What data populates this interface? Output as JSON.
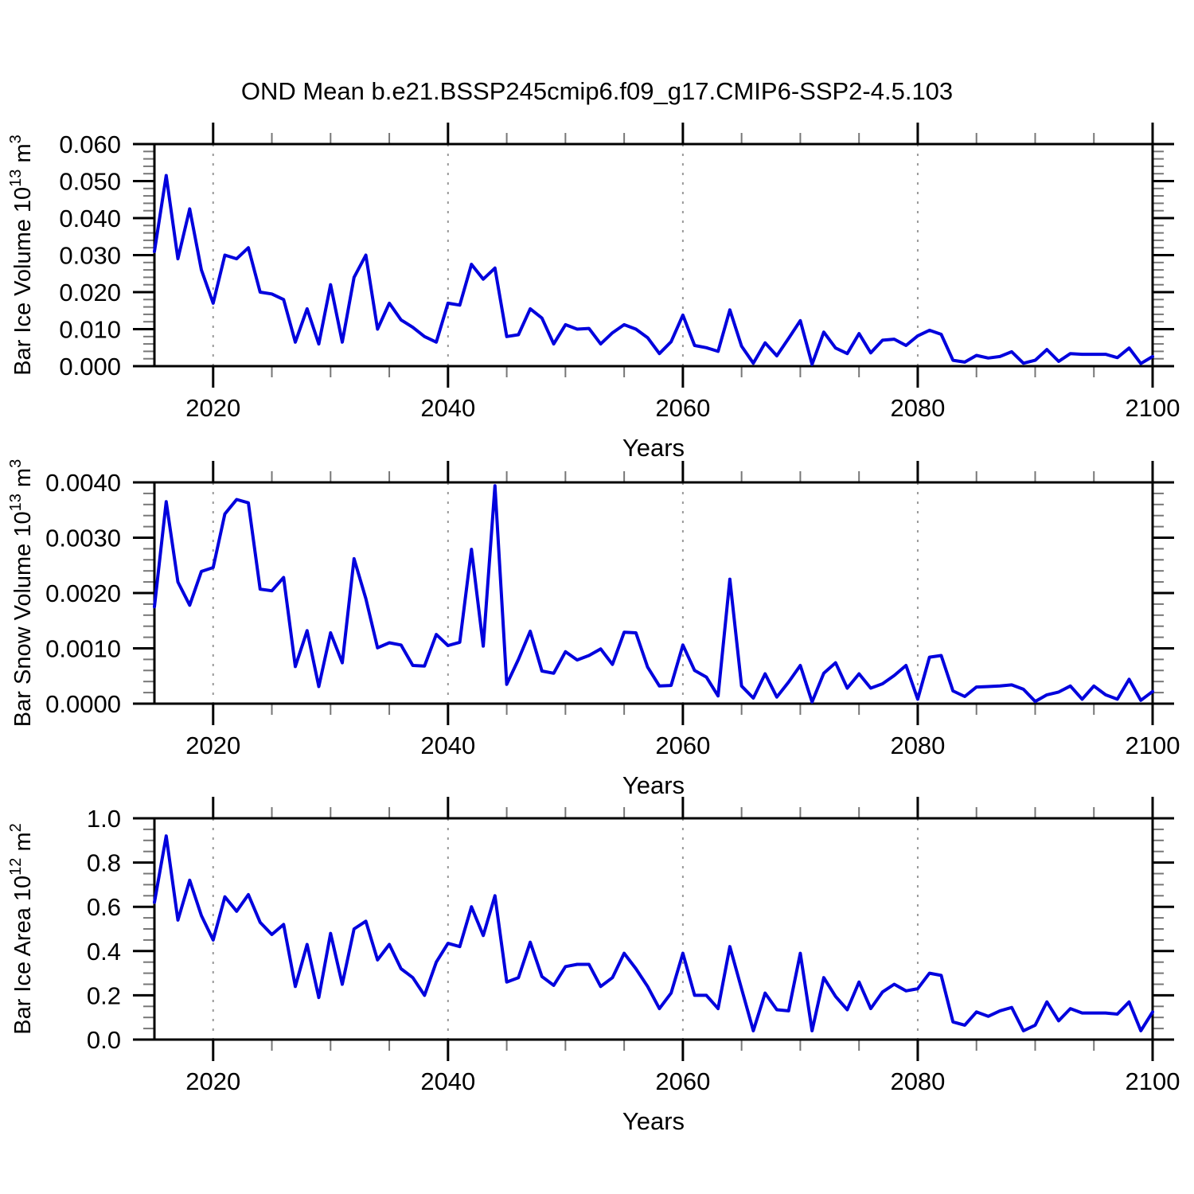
{
  "title": "OND Mean b.e21.BSSP245cmip6.f09_g17.CMIP6-SSP2-4.5.103",
  "xlabel": "Years",
  "line_color": "#0000dd",
  "grid_color": "#999999",
  "axis_color": "#000000",
  "minor_tick_color": "#777777",
  "x_years_start": 2015,
  "x_years_end": 2100,
  "x_major_tick_labels": [
    "2020",
    "2040",
    "2060",
    "2080",
    "2100"
  ],
  "x_major_tick_years": [
    2020,
    2040,
    2060,
    2080,
    2100
  ],
  "x_minor_step": 5,
  "grid_years": [
    2020,
    2040,
    2060,
    2080
  ],
  "chart_data": [
    {
      "type": "line",
      "name": "bar-ice-volume",
      "ylabel": "Bar Ice Volume 10¹³ m³",
      "ylabel_parts": {
        "prefix": "Bar Ice Volume 10",
        "sup1": "13",
        "mid": " m",
        "sup2": "3"
      },
      "xlabel": "Years",
      "ylim": [
        0.0,
        0.06
      ],
      "ytick_labels": [
        "0.000",
        "0.010",
        "0.020",
        "0.030",
        "0.040",
        "0.050",
        "0.060"
      ],
      "ytick_values": [
        0.0,
        0.01,
        0.02,
        0.03,
        0.04,
        0.05,
        0.06
      ],
      "y_minor_step": 0.002,
      "grid": "vertical-dashed",
      "legend": "none",
      "x": [
        2015,
        2016,
        2017,
        2018,
        2019,
        2020,
        2021,
        2022,
        2023,
        2024,
        2025,
        2026,
        2027,
        2028,
        2029,
        2030,
        2031,
        2032,
        2033,
        2034,
        2035,
        2036,
        2037,
        2038,
        2039,
        2040,
        2041,
        2042,
        2043,
        2044,
        2045,
        2046,
        2047,
        2048,
        2049,
        2050,
        2051,
        2052,
        2053,
        2054,
        2055,
        2056,
        2057,
        2058,
        2059,
        2060,
        2061,
        2062,
        2063,
        2064,
        2065,
        2066,
        2067,
        2068,
        2069,
        2070,
        2071,
        2072,
        2073,
        2074,
        2075,
        2076,
        2077,
        2078,
        2079,
        2080,
        2081,
        2082,
        2083,
        2084,
        2085,
        2086,
        2087,
        2088,
        2089,
        2090,
        2091,
        2092,
        2093,
        2094,
        2095,
        2096,
        2097,
        2098,
        2099,
        2100
      ],
      "values": [
        0.031,
        0.0515,
        0.029,
        0.0425,
        0.026,
        0.017,
        0.03,
        0.029,
        0.032,
        0.02,
        0.0195,
        0.018,
        0.0065,
        0.0155,
        0.006,
        0.022,
        0.0065,
        0.024,
        0.03,
        0.01,
        0.017,
        0.0125,
        0.0105,
        0.008,
        0.0065,
        0.017,
        0.0165,
        0.0275,
        0.0235,
        0.0265,
        0.008,
        0.0085,
        0.0155,
        0.013,
        0.006,
        0.0112,
        0.01,
        0.0102,
        0.006,
        0.009,
        0.0112,
        0.01,
        0.0077,
        0.0034,
        0.0066,
        0.0138,
        0.0056,
        0.005,
        0.004,
        0.0152,
        0.0054,
        0.0008,
        0.0063,
        0.0028,
        0.0075,
        0.0123,
        0.0005,
        0.0092,
        0.0049,
        0.0034,
        0.0088,
        0.0036,
        0.007,
        0.0073,
        0.0056,
        0.0082,
        0.0097,
        0.0086,
        0.0016,
        0.0011,
        0.0029,
        0.0022,
        0.0026,
        0.0039,
        0.0008,
        0.0016,
        0.0045,
        0.0013,
        0.0034,
        0.0032,
        0.0032,
        0.0032,
        0.0023,
        0.0049,
        0.0007,
        0.0026
      ]
    },
    {
      "type": "line",
      "name": "bar-snow-volume",
      "ylabel": "Bar Snow Volume 10¹³ m³",
      "ylabel_parts": {
        "prefix": "Bar Snow Volume 10",
        "sup1": "13",
        "mid": " m",
        "sup2": "3"
      },
      "xlabel": "Years",
      "ylim": [
        0.0,
        0.004
      ],
      "ytick_labels": [
        "0.0000",
        "0.0010",
        "0.0020",
        "0.0030",
        "0.0040"
      ],
      "ytick_values": [
        0.0,
        0.001,
        0.002,
        0.003,
        0.004
      ],
      "y_minor_step": 0.0002,
      "grid": "vertical-dashed",
      "legend": "none",
      "x": [
        2015,
        2016,
        2017,
        2018,
        2019,
        2020,
        2021,
        2022,
        2023,
        2024,
        2025,
        2026,
        2027,
        2028,
        2029,
        2030,
        2031,
        2032,
        2033,
        2034,
        2035,
        2036,
        2037,
        2038,
        2039,
        2040,
        2041,
        2042,
        2043,
        2044,
        2045,
        2046,
        2047,
        2048,
        2049,
        2050,
        2051,
        2052,
        2053,
        2054,
        2055,
        2056,
        2057,
        2058,
        2059,
        2060,
        2061,
        2062,
        2063,
        2064,
        2065,
        2066,
        2067,
        2068,
        2069,
        2070,
        2071,
        2072,
        2073,
        2074,
        2075,
        2076,
        2077,
        2078,
        2079,
        2080,
        2081,
        2082,
        2083,
        2084,
        2085,
        2086,
        2087,
        2088,
        2089,
        2090,
        2091,
        2092,
        2093,
        2094,
        2095,
        2096,
        2097,
        2098,
        2099,
        2100
      ],
      "values": [
        0.00175,
        0.00365,
        0.0022,
        0.00178,
        0.00239,
        0.00246,
        0.00343,
        0.00369,
        0.00363,
        0.00207,
        0.00204,
        0.00228,
        0.00067,
        0.00132,
        0.00031,
        0.00128,
        0.00074,
        0.00262,
        0.0019,
        0.00101,
        0.0011,
        0.00106,
        0.00069,
        0.00068,
        0.00125,
        0.00105,
        0.00111,
        0.00279,
        0.00104,
        0.00394,
        0.00035,
        0.0008,
        0.00131,
        0.00059,
        0.00055,
        0.00094,
        0.00079,
        0.00087,
        0.00099,
        0.00071,
        0.00129,
        0.00128,
        0.00066,
        0.00032,
        0.00033,
        0.00106,
        0.0006,
        0.00048,
        0.00014,
        0.00225,
        0.00032,
        0.0001,
        0.00054,
        0.00012,
        0.00039,
        0.00069,
        3e-05,
        0.00055,
        0.00074,
        0.00028,
        0.00054,
        0.00028,
        0.00036,
        0.00051,
        0.00069,
        8e-05,
        0.00084,
        0.00087,
        0.00023,
        0.00013,
        0.0003,
        0.00031,
        0.00032,
        0.00034,
        0.00026,
        4e-05,
        0.00016,
        0.00021,
        0.00032,
        8e-05,
        0.00032,
        0.00016,
        8e-05,
        0.00044,
        6e-05,
        0.00022
      ]
    },
    {
      "type": "line",
      "name": "bar-ice-area",
      "ylabel": "Bar Ice Area 10¹² m²",
      "ylabel_parts": {
        "prefix": "Bar Ice Area 10",
        "sup1": "12",
        "mid": " m",
        "sup2": "2"
      },
      "xlabel": "Years",
      "ylim": [
        0.0,
        1.0
      ],
      "ytick_labels": [
        "0.0",
        "0.2",
        "0.4",
        "0.6",
        "0.8",
        "1.0"
      ],
      "ytick_values": [
        0.0,
        0.2,
        0.4,
        0.6,
        0.8,
        1.0
      ],
      "y_minor_step": 0.05,
      "grid": "vertical-dashed",
      "legend": "none",
      "x": [
        2015,
        2016,
        2017,
        2018,
        2019,
        2020,
        2021,
        2022,
        2023,
        2024,
        2025,
        2026,
        2027,
        2028,
        2029,
        2030,
        2031,
        2032,
        2033,
        2034,
        2035,
        2036,
        2037,
        2038,
        2039,
        2040,
        2041,
        2042,
        2043,
        2044,
        2045,
        2046,
        2047,
        2048,
        2049,
        2050,
        2051,
        2052,
        2053,
        2054,
        2055,
        2056,
        2057,
        2058,
        2059,
        2060,
        2061,
        2062,
        2063,
        2064,
        2065,
        2066,
        2067,
        2068,
        2069,
        2070,
        2071,
        2072,
        2073,
        2074,
        2075,
        2076,
        2077,
        2078,
        2079,
        2080,
        2081,
        2082,
        2083,
        2084,
        2085,
        2086,
        2087,
        2088,
        2089,
        2090,
        2091,
        2092,
        2093,
        2094,
        2095,
        2096,
        2097,
        2098,
        2099,
        2100
      ],
      "values": [
        0.62,
        0.92,
        0.54,
        0.72,
        0.56,
        0.45,
        0.645,
        0.58,
        0.655,
        0.53,
        0.475,
        0.52,
        0.24,
        0.43,
        0.19,
        0.48,
        0.25,
        0.5,
        0.535,
        0.36,
        0.43,
        0.32,
        0.28,
        0.2,
        0.35,
        0.435,
        0.42,
        0.6,
        0.47,
        0.65,
        0.26,
        0.28,
        0.44,
        0.285,
        0.245,
        0.33,
        0.34,
        0.34,
        0.24,
        0.28,
        0.39,
        0.32,
        0.24,
        0.14,
        0.21,
        0.39,
        0.2,
        0.2,
        0.14,
        0.42,
        0.23,
        0.04,
        0.21,
        0.135,
        0.13,
        0.39,
        0.04,
        0.28,
        0.195,
        0.135,
        0.26,
        0.14,
        0.215,
        0.25,
        0.22,
        0.23,
        0.3,
        0.29,
        0.08,
        0.065,
        0.125,
        0.105,
        0.13,
        0.145,
        0.04,
        0.065,
        0.17,
        0.085,
        0.14,
        0.12,
        0.12,
        0.12,
        0.115,
        0.17,
        0.04,
        0.125
      ]
    }
  ]
}
